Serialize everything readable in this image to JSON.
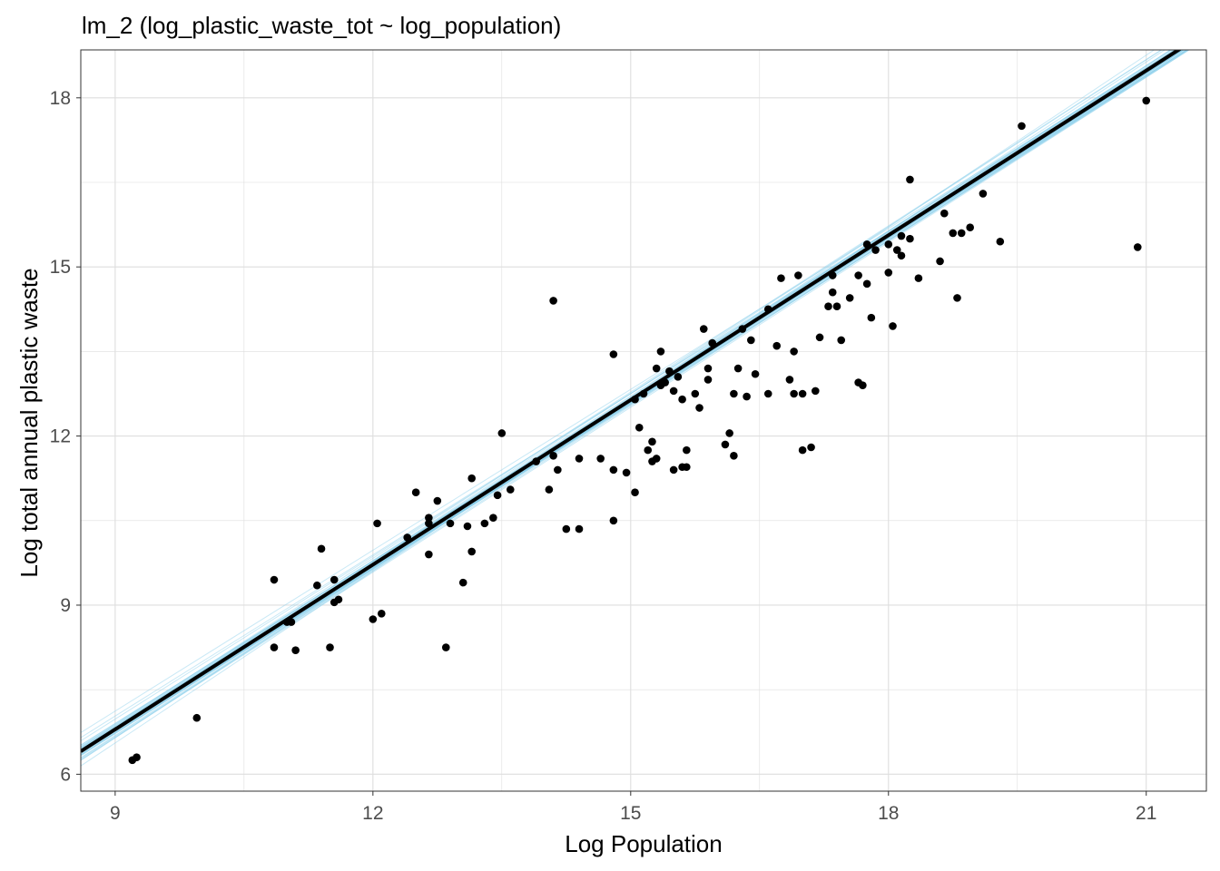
{
  "chart_data": {
    "type": "scatter",
    "title": "lm_2 (log_plastic_waste_tot ~ log_population)",
    "xlabel": "Log Population",
    "ylabel": "Log total annual plastic waste",
    "xlim": [
      8.6,
      21.7
    ],
    "ylim": [
      5.7,
      18.85
    ],
    "x_ticks": [
      9,
      12,
      15,
      18,
      21
    ],
    "y_ticks": [
      6,
      9,
      12,
      15,
      18
    ],
    "x_tick_labels": [
      "9",
      "12",
      "15",
      "18",
      "21"
    ],
    "y_tick_labels": [
      "6",
      "9",
      "12",
      "15",
      "18"
    ],
    "grid": true,
    "legend": "none",
    "colors": {
      "points": "#000000",
      "fit_line": "#000000",
      "posterior_lines": "#87ceeb",
      "grid": "#dedede",
      "panel_border": "#333333"
    },
    "fit_line": {
      "intercept": -1.97,
      "slope": 0.974
    },
    "posterior_band": {
      "count": 40,
      "intercept_sd": 0.18,
      "slope_sd": 0.011,
      "pivot_x": 15.2
    },
    "points": [
      [
        9.2,
        6.25
      ],
      [
        9.25,
        6.3
      ],
      [
        9.95,
        7.0
      ],
      [
        10.85,
        8.25
      ],
      [
        10.85,
        9.45
      ],
      [
        11.0,
        8.7
      ],
      [
        11.05,
        8.7
      ],
      [
        11.1,
        8.2
      ],
      [
        11.35,
        9.35
      ],
      [
        11.4,
        10.0
      ],
      [
        11.5,
        8.25
      ],
      [
        11.55,
        9.45
      ],
      [
        11.55,
        9.05
      ],
      [
        11.6,
        9.1
      ],
      [
        12.0,
        8.75
      ],
      [
        12.05,
        10.45
      ],
      [
        12.1,
        8.85
      ],
      [
        12.4,
        10.2
      ],
      [
        12.5,
        11.0
      ],
      [
        12.65,
        10.55
      ],
      [
        12.65,
        10.45
      ],
      [
        12.65,
        9.9
      ],
      [
        12.75,
        10.85
      ],
      [
        12.85,
        8.25
      ],
      [
        12.9,
        10.45
      ],
      [
        13.05,
        9.4
      ],
      [
        13.1,
        10.4
      ],
      [
        13.15,
        11.25
      ],
      [
        13.15,
        9.95
      ],
      [
        13.3,
        10.45
      ],
      [
        13.4,
        10.55
      ],
      [
        13.45,
        10.95
      ],
      [
        13.5,
        12.05
      ],
      [
        13.6,
        11.05
      ],
      [
        13.9,
        11.55
      ],
      [
        14.05,
        11.05
      ],
      [
        14.1,
        11.65
      ],
      [
        14.1,
        14.4
      ],
      [
        14.15,
        11.4
      ],
      [
        14.25,
        10.35
      ],
      [
        14.4,
        10.35
      ],
      [
        14.4,
        11.6
      ],
      [
        14.65,
        11.6
      ],
      [
        14.8,
        11.4
      ],
      [
        14.8,
        13.45
      ],
      [
        14.8,
        10.5
      ],
      [
        14.95,
        11.35
      ],
      [
        15.05,
        12.65
      ],
      [
        15.05,
        11.0
      ],
      [
        15.1,
        12.15
      ],
      [
        15.15,
        12.75
      ],
      [
        15.2,
        11.75
      ],
      [
        15.25,
        11.55
      ],
      [
        15.25,
        11.9
      ],
      [
        15.3,
        11.6
      ],
      [
        15.3,
        13.2
      ],
      [
        15.35,
        12.9
      ],
      [
        15.35,
        13.5
      ],
      [
        15.4,
        12.95
      ],
      [
        15.45,
        13.15
      ],
      [
        15.5,
        12.8
      ],
      [
        15.5,
        11.4
      ],
      [
        15.55,
        13.05
      ],
      [
        15.6,
        11.45
      ],
      [
        15.6,
        12.65
      ],
      [
        15.65,
        11.45
      ],
      [
        15.65,
        11.75
      ],
      [
        15.75,
        12.75
      ],
      [
        15.8,
        12.5
      ],
      [
        15.85,
        13.9
      ],
      [
        15.9,
        13.0
      ],
      [
        15.9,
        13.2
      ],
      [
        15.95,
        13.65
      ],
      [
        16.1,
        11.85
      ],
      [
        16.15,
        12.05
      ],
      [
        16.2,
        12.75
      ],
      [
        16.2,
        11.65
      ],
      [
        16.25,
        13.2
      ],
      [
        16.3,
        13.9
      ],
      [
        16.35,
        12.7
      ],
      [
        16.4,
        13.7
      ],
      [
        16.45,
        13.1
      ],
      [
        16.6,
        14.25
      ],
      [
        16.6,
        12.75
      ],
      [
        16.7,
        13.6
      ],
      [
        16.75,
        14.8
      ],
      [
        16.85,
        13.0
      ],
      [
        16.9,
        12.75
      ],
      [
        16.9,
        13.5
      ],
      [
        16.95,
        14.85
      ],
      [
        17.0,
        12.75
      ],
      [
        17.0,
        11.75
      ],
      [
        17.1,
        11.8
      ],
      [
        17.15,
        12.8
      ],
      [
        17.2,
        13.75
      ],
      [
        17.3,
        14.3
      ],
      [
        17.35,
        14.55
      ],
      [
        17.35,
        14.85
      ],
      [
        17.4,
        14.3
      ],
      [
        17.45,
        13.7
      ],
      [
        17.55,
        14.45
      ],
      [
        17.65,
        12.95
      ],
      [
        17.65,
        14.85
      ],
      [
        17.7,
        12.9
      ],
      [
        17.75,
        14.7
      ],
      [
        17.75,
        15.4
      ],
      [
        17.8,
        14.1
      ],
      [
        17.85,
        15.3
      ],
      [
        18.0,
        14.9
      ],
      [
        18.0,
        15.4
      ],
      [
        18.05,
        13.95
      ],
      [
        18.1,
        15.3
      ],
      [
        18.15,
        15.55
      ],
      [
        18.15,
        15.2
      ],
      [
        18.25,
        15.5
      ],
      [
        18.25,
        16.55
      ],
      [
        18.35,
        14.8
      ],
      [
        18.6,
        15.1
      ],
      [
        18.65,
        15.95
      ],
      [
        18.75,
        15.6
      ],
      [
        18.8,
        14.45
      ],
      [
        18.85,
        15.6
      ],
      [
        18.95,
        15.7
      ],
      [
        19.1,
        16.3
      ],
      [
        19.3,
        15.45
      ],
      [
        19.55,
        17.5
      ],
      [
        20.9,
        15.35
      ],
      [
        21.0,
        17.95
      ]
    ]
  }
}
